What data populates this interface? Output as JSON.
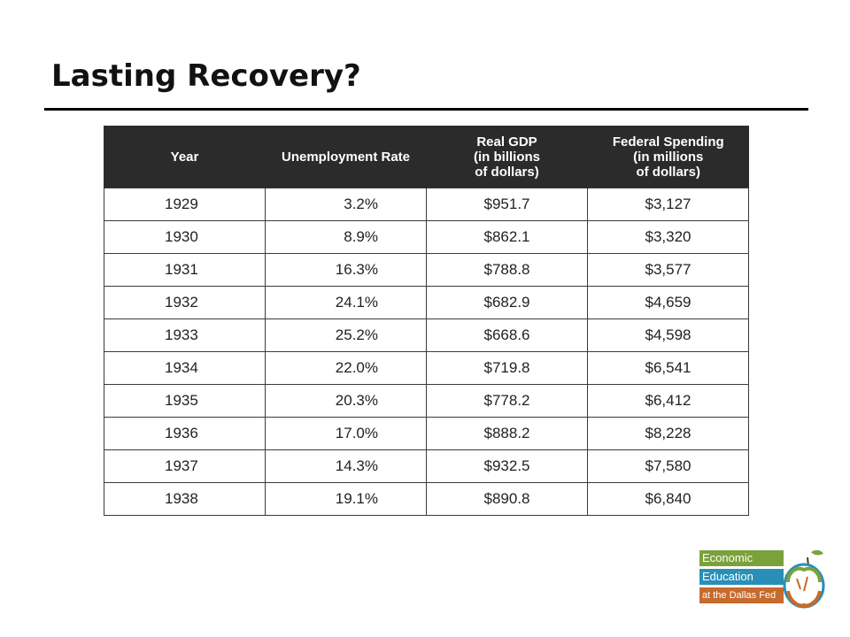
{
  "slide": {
    "title": "Lasting Recovery?"
  },
  "table": {
    "headers": [
      {
        "lines": [
          "Year"
        ]
      },
      {
        "lines": [
          "Unemployment Rate"
        ]
      },
      {
        "lines": [
          "Real GDP",
          "(in billions",
          "of dollars)"
        ]
      },
      {
        "lines": [
          "Federal Spending",
          "(in millions",
          "of dollars)"
        ]
      }
    ],
    "rows": [
      {
        "year": "1929",
        "rate": "3.2%",
        "gdp": "$951.7",
        "spending": "$3,127"
      },
      {
        "year": "1930",
        "rate": "8.9%",
        "gdp": "$862.1",
        "spending": "$3,320"
      },
      {
        "year": "1931",
        "rate": "16.3%",
        "gdp": "$788.8",
        "spending": "$3,577"
      },
      {
        "year": "1932",
        "rate": "24.1%",
        "gdp": "$682.9",
        "spending": "$4,659"
      },
      {
        "year": "1933",
        "rate": "25.2%",
        "gdp": "$668.6",
        "spending": "$4,598"
      },
      {
        "year": "1934",
        "rate": "22.0%",
        "gdp": "$719.8",
        "spending": "$6,541"
      },
      {
        "year": "1935",
        "rate": "20.3%",
        "gdp": "$778.2",
        "spending": "$6,412"
      },
      {
        "year": "1936",
        "rate": "17.0%",
        "gdp": "$888.2",
        "spending": "$8,228"
      },
      {
        "year": "1937",
        "rate": "14.3%",
        "gdp": "$932.5",
        "spending": "$7,580"
      },
      {
        "year": "1938",
        "rate": "19.1%",
        "gdp": "$890.8",
        "spending": "$6,840"
      }
    ]
  },
  "logo": {
    "line1": "Economic",
    "line2": "Education",
    "line3": "at the Dallas Fed"
  }
}
